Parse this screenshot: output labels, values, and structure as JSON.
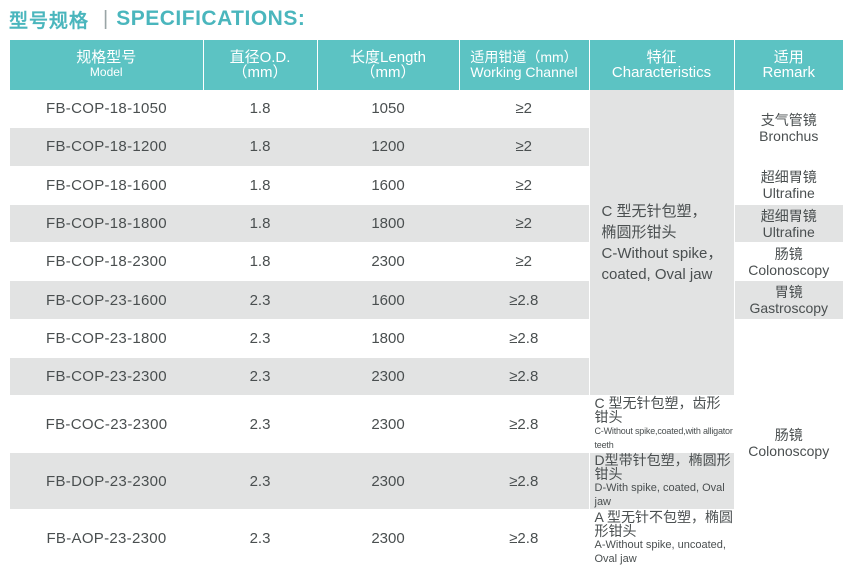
{
  "heading": {
    "cn": "型号规格",
    "sep": "|",
    "en": "SPECIFICATIONS:"
  },
  "columns": [
    {
      "l1": "规格型号",
      "l2": "Model"
    },
    {
      "l1": "直径O.D.",
      "l2": "（mm）"
    },
    {
      "l1": "长度Length",
      "l2": "（mm）"
    },
    {
      "l1": "适用钳道（mm）",
      "l2": "Working Channel"
    },
    {
      "l1": "特征",
      "l2": "Characteristics"
    },
    {
      "l1": "适用",
      "l2": "Remark"
    }
  ],
  "rows": [
    {
      "model": "FB-COP-18-1050",
      "od": "1.8",
      "length": "1050",
      "channel": "≥2"
    },
    {
      "model": "FB-COP-18-1200",
      "od": "1.8",
      "length": "1200",
      "channel": "≥2"
    },
    {
      "model": "FB-COP-18-1600",
      "od": "1.8",
      "length": "1600",
      "channel": "≥2"
    },
    {
      "model": "FB-COP-18-1800",
      "od": "1.8",
      "length": "1800",
      "channel": "≥2"
    },
    {
      "model": "FB-COP-18-2300",
      "od": "1.8",
      "length": "2300",
      "channel": "≥2"
    },
    {
      "model": "FB-COP-23-1600",
      "od": "2.3",
      "length": "1600",
      "channel": "≥2.8"
    },
    {
      "model": "FB-COP-23-1800",
      "od": "2.3",
      "length": "1800",
      "channel": "≥2.8"
    },
    {
      "model": "FB-COP-23-2300",
      "od": "2.3",
      "length": "2300",
      "channel": "≥2.8"
    },
    {
      "model": "FB-COC-23-2300",
      "od": "2.3",
      "length": "2300",
      "channel": "≥2.8"
    },
    {
      "model": "FB-DOP-23-2300",
      "od": "2.3",
      "length": "2300",
      "channel": "≥2.8"
    },
    {
      "model": "FB-AOP-23-2300",
      "od": "2.3",
      "length": "2300",
      "channel": "≥2.8"
    }
  ],
  "characteristics": {
    "main": {
      "cn1": "C 型无针包塑，",
      "cn2": "椭圆形钳头",
      "en1": "C-Without spike，",
      "en2": "coated, Oval jaw"
    },
    "coc": {
      "cn": "C 型无针包塑，齿形钳头",
      "en": "C-Without spike,coated,with alligator teeth"
    },
    "dop": {
      "cn": "D型带针包塑，椭圆形钳头",
      "en": "D-With spike, coated, Oval jaw"
    },
    "aop": {
      "cn": "A 型无针不包塑，椭圆形钳头",
      "en": "A-Without spike, uncoated, Oval jaw"
    }
  },
  "remarks": {
    "bronchus": {
      "cn": "支气管镜",
      "en": "Bronchus"
    },
    "ultrafine1": {
      "cn": "超细胃镜",
      "en": "Ultrafine"
    },
    "ultrafine2": {
      "cn": "超细胃镜",
      "en": "Ultrafine"
    },
    "colonoscopy1": {
      "cn": "肠镜",
      "en": "Colonoscopy"
    },
    "gastroscopy": {
      "cn": "胃镜",
      "en": "Gastroscopy"
    },
    "colonoscopy2": {
      "cn": "肠镜",
      "en": "Colonoscopy"
    }
  },
  "colors": {
    "accent": "#4ab6bd",
    "header_bg": "#5cc3c3",
    "row_gray": "#e2e3e3",
    "text": "#4a4f50"
  }
}
